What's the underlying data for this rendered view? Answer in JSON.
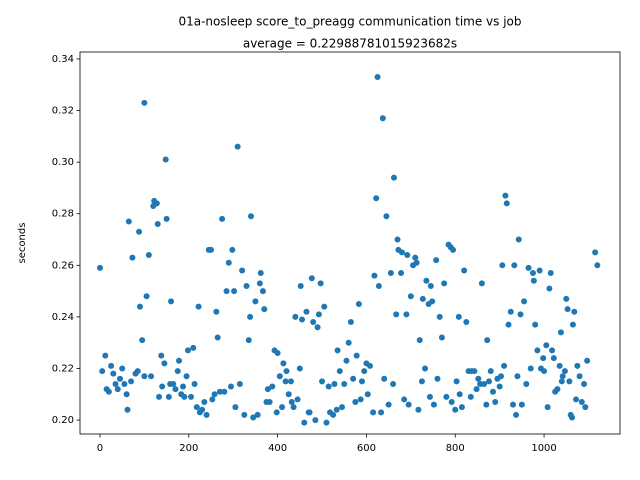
{
  "chart_data": {
    "type": "scatter",
    "title": "01a-nosleep score_to_preagg communication time vs job",
    "subtitle": "average = 0.22988781015923682s",
    "y_label": "seconds",
    "color": "#1f77b4",
    "x": [
      0,
      5,
      12,
      15,
      20,
      25,
      30,
      35,
      40,
      45,
      50,
      55,
      60,
      62,
      65,
      70,
      73,
      80,
      85,
      88,
      90,
      95,
      100,
      100,
      105,
      110,
      115,
      120,
      122,
      128,
      130,
      133,
      138,
      140,
      145,
      148,
      150,
      155,
      158,
      160,
      165,
      170,
      175,
      178,
      183,
      187,
      190,
      195,
      198,
      205,
      210,
      213,
      218,
      222,
      225,
      230,
      235,
      240,
      245,
      250,
      253,
      258,
      262,
      265,
      270,
      275,
      280,
      285,
      290,
      295,
      298,
      302,
      305,
      310,
      315,
      320,
      325,
      330,
      335,
      338,
      340,
      345,
      350,
      355,
      360,
      362,
      367,
      370,
      375,
      378,
      382,
      388,
      393,
      398,
      400,
      405,
      410,
      413,
      418,
      420,
      425,
      430,
      432,
      436,
      440,
      445,
      450,
      452,
      455,
      460,
      465,
      470,
      472,
      477,
      480,
      485,
      490,
      493,
      497,
      500,
      505,
      510,
      515,
      518,
      525,
      528,
      533,
      535,
      540,
      545,
      550,
      555,
      560,
      565,
      570,
      575,
      578,
      583,
      587,
      590,
      595,
      600,
      603,
      608,
      615,
      618,
      622,
      625,
      628,
      633,
      637,
      640,
      645,
      650,
      655,
      660,
      662,
      667,
      670,
      672,
      678,
      680,
      685,
      690,
      692,
      695,
      700,
      705,
      710,
      713,
      717,
      720,
      725,
      727,
      732,
      735,
      740,
      743,
      745,
      748,
      752,
      757,
      760,
      765,
      770,
      775,
      780,
      785,
      790,
      792,
      795,
      800,
      803,
      808,
      810,
      815,
      820,
      825,
      830,
      835,
      837,
      843,
      848,
      852,
      856,
      860,
      865,
      870,
      872,
      876,
      880,
      885,
      890,
      895,
      900,
      903,
      906,
      910,
      913,
      916,
      920,
      925,
      930,
      933,
      937,
      940,
      943,
      947,
      950,
      955,
      960,
      965,
      970,
      975,
      977,
      980,
      985,
      990,
      993,
      998,
      1000,
      1005,
      1008,
      1012,
      1015,
      1018,
      1022,
      1025,
      1030,
      1035,
      1038,
      1040,
      1042,
      1047,
      1050,
      1053,
      1057,
      1060,
      1063,
      1065,
      1068,
      1072,
      1075,
      1080,
      1085,
      1090,
      1093,
      1097,
      1115,
      1120
    ],
    "y": [
      0.259,
      0.219,
      0.225,
      0.212,
      0.211,
      0.221,
      0.218,
      0.214,
      0.212,
      0.216,
      0.22,
      0.214,
      0.21,
      0.204,
      0.277,
      0.215,
      0.263,
      0.218,
      0.219,
      0.273,
      0.244,
      0.231,
      0.217,
      0.323,
      0.248,
      0.264,
      0.217,
      0.283,
      0.285,
      0.284,
      0.276,
      0.209,
      0.225,
      0.213,
      0.222,
      0.301,
      0.278,
      0.209,
      0.214,
      0.246,
      0.214,
      0.212,
      0.219,
      0.223,
      0.21,
      0.213,
      0.209,
      0.217,
      0.227,
      0.209,
      0.228,
      0.214,
      0.205,
      0.244,
      0.203,
      0.204,
      0.207,
      0.202,
      0.266,
      0.266,
      0.208,
      0.21,
      0.242,
      0.232,
      0.211,
      0.278,
      0.211,
      0.25,
      0.261,
      0.213,
      0.266,
      0.25,
      0.205,
      0.306,
      0.214,
      0.258,
      0.202,
      0.252,
      0.231,
      0.24,
      0.279,
      0.201,
      0.246,
      0.202,
      0.253,
      0.257,
      0.25,
      0.243,
      0.207,
      0.212,
      0.207,
      0.213,
      0.227,
      0.203,
      0.226,
      0.217,
      0.205,
      0.222,
      0.215,
      0.219,
      0.21,
      0.215,
      0.207,
      0.205,
      0.24,
      0.208,
      0.22,
      0.252,
      0.239,
      0.199,
      0.242,
      0.203,
      0.203,
      0.255,
      0.238,
      0.2,
      0.236,
      0.241,
      0.253,
      0.215,
      0.244,
      0.199,
      0.213,
      0.203,
      0.202,
      0.214,
      0.204,
      0.227,
      0.219,
      0.205,
      0.214,
      0.223,
      0.23,
      0.238,
      0.216,
      0.207,
      0.225,
      0.245,
      0.208,
      0.215,
      0.219,
      0.222,
      0.21,
      0.221,
      0.203,
      0.256,
      0.286,
      0.333,
      0.252,
      0.203,
      0.317,
      0.216,
      0.279,
      0.206,
      0.257,
      0.214,
      0.294,
      0.241,
      0.27,
      0.266,
      0.257,
      0.265,
      0.208,
      0.241,
      0.264,
      0.206,
      0.248,
      0.26,
      0.263,
      0.261,
      0.204,
      0.231,
      0.215,
      0.247,
      0.22,
      0.254,
      0.245,
      0.209,
      0.252,
      0.246,
      0.206,
      0.262,
      0.216,
      0.24,
      0.232,
      0.253,
      0.209,
      0.268,
      0.267,
      0.207,
      0.266,
      0.204,
      0.215,
      0.24,
      0.21,
      0.205,
      0.258,
      0.238,
      0.219,
      0.209,
      0.219,
      0.219,
      0.212,
      0.216,
      0.214,
      0.253,
      0.214,
      0.206,
      0.231,
      0.215,
      0.219,
      0.211,
      0.207,
      0.216,
      0.213,
      0.217,
      0.26,
      0.221,
      0.287,
      0.284,
      0.237,
      0.242,
      0.206,
      0.26,
      0.202,
      0.217,
      0.27,
      0.241,
      0.206,
      0.246,
      0.214,
      0.259,
      0.22,
      0.257,
      0.254,
      0.237,
      0.227,
      0.258,
      0.22,
      0.224,
      0.219,
      0.229,
      0.205,
      0.251,
      0.257,
      0.227,
      0.224,
      0.211,
      0.212,
      0.221,
      0.234,
      0.215,
      0.217,
      0.219,
      0.247,
      0.243,
      0.215,
      0.202,
      0.201,
      0.237,
      0.242,
      0.208,
      0.221,
      0.217,
      0.207,
      0.214,
      0.205,
      0.223,
      0.265,
      0.26
    ],
    "xlim": [
      -45,
      1171
    ],
    "ylim": [
      0.1946,
      0.3427
    ],
    "xticks": [
      0,
      200,
      400,
      600,
      800,
      1000
    ],
    "yticks": [
      {
        "value": 0.2,
        "label": "0.20"
      },
      {
        "value": 0.22,
        "label": "0.22"
      },
      {
        "value": 0.24,
        "label": "0.24"
      },
      {
        "value": 0.26,
        "label": "0.26"
      },
      {
        "value": 0.28,
        "label": "0.28"
      },
      {
        "value": 0.3,
        "label": "0.30"
      },
      {
        "value": 0.32,
        "label": "0.32"
      },
      {
        "value": 0.34,
        "label": "0.34"
      }
    ]
  }
}
